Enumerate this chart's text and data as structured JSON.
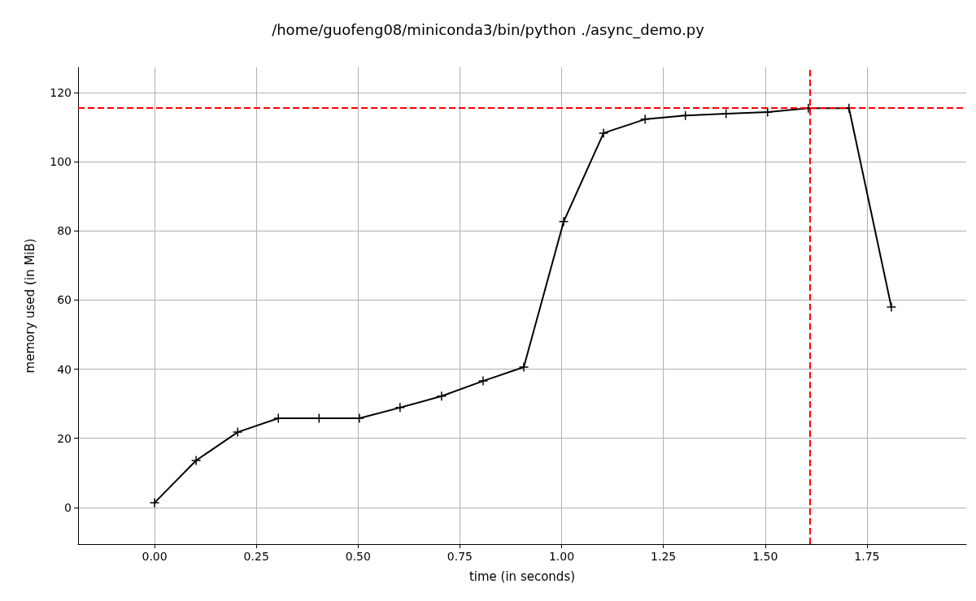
{
  "chart_data": {
    "type": "line",
    "title": "/home/guofeng08/miniconda3/bin/python ./async_demo.py",
    "xlabel": "time (in seconds)",
    "ylabel": "memory used (in MiB)",
    "x": [
      0.0,
      0.102,
      0.204,
      0.304,
      0.404,
      0.503,
      0.603,
      0.705,
      0.807,
      0.907,
      1.005,
      1.103,
      1.205,
      1.304,
      1.404,
      1.506,
      1.606,
      1.706,
      1.81
    ],
    "series": [
      {
        "color": "#000000",
        "values": [
          1.4,
          13.6,
          21.8,
          25.8,
          25.8,
          25.8,
          28.9,
          32.2,
          36.6,
          40.6,
          82.7,
          108.3,
          112.3,
          113.4,
          113.9,
          114.4,
          115.5,
          115.5,
          58.0
        ]
      }
    ],
    "xlim": [
      -0.188,
      1.994
    ],
    "xticks": [
      {
        "value": 0,
        "label": "0.00"
      },
      {
        "value": 0.25,
        "label": "0.25"
      },
      {
        "value": 0.5,
        "label": "0.50"
      },
      {
        "value": 0.75,
        "label": "0.75"
      },
      {
        "value": 1,
        "label": "1.00"
      },
      {
        "value": 1.25,
        "label": "1.25"
      },
      {
        "value": 1.5,
        "label": "1.50"
      },
      {
        "value": 1.75,
        "label": "1.75"
      }
    ],
    "ylim": [
      -10.6,
      127.3
    ],
    "yticks": [
      0,
      20,
      40,
      60,
      80,
      100,
      120
    ],
    "ref_lines": [
      {
        "axis": "y",
        "value": 115.5,
        "color": "#ff0000",
        "line_style": "dashed"
      },
      {
        "axis": "x",
        "value": 1.606,
        "color": "#ff0000",
        "line_style": "dashed"
      }
    ],
    "grid": true,
    "marker": "cross",
    "line_style": "solid"
  }
}
